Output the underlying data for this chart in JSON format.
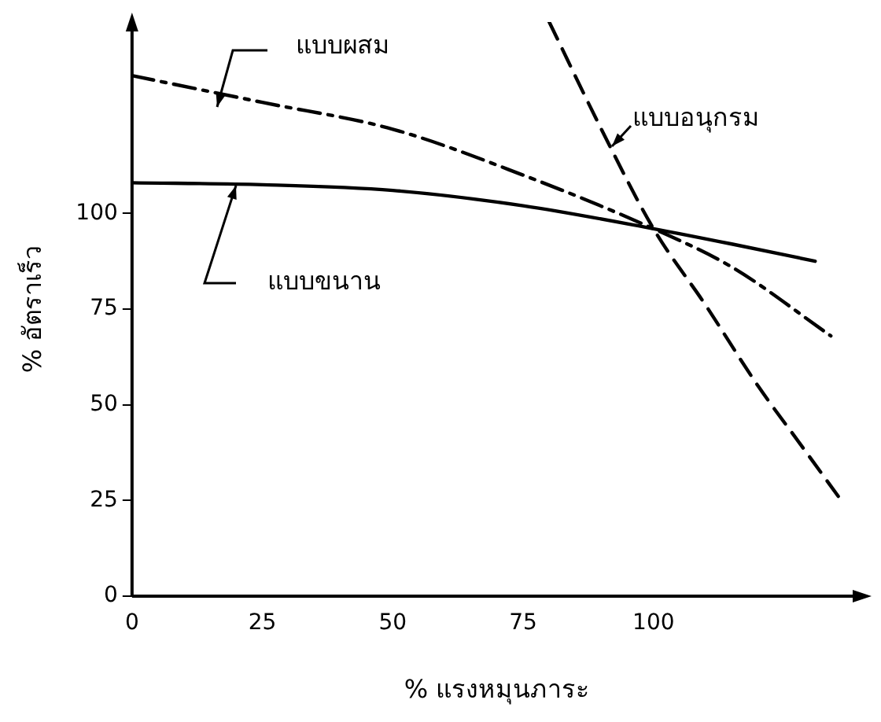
{
  "chart_data": {
    "type": "line",
    "xlabel": "% แรงหมุนภาระ",
    "ylabel": "% อัตราเร็ว",
    "xlim": [
      0,
      140
    ],
    "ylim": [
      0,
      150
    ],
    "xticks": [
      0,
      25,
      50,
      75,
      100
    ],
    "yticks": [
      0,
      25,
      50,
      75,
      100
    ],
    "grid": false,
    "legend": false,
    "marker": "none",
    "series": [
      {
        "name": "แบบขนาน",
        "color": "#000000",
        "line_style": "solid",
        "x": [
          0,
          25,
          50,
          75,
          100,
          115,
          131
        ],
        "values": [
          108,
          107.5,
          106,
          102,
          96,
          92,
          87.5
        ]
      },
      {
        "name": "แบบผสม",
        "color": "#000000",
        "line_style": "dashdot",
        "x": [
          0,
          25,
          50,
          75,
          100,
          115,
          134
        ],
        "values": [
          136,
          129,
          122,
          110,
          96,
          86,
          68
        ]
      },
      {
        "name": "แบบอนุกรม",
        "color": "#000000",
        "line_style": "dashed",
        "x": [
          80,
          90,
          100,
          110,
          120,
          128,
          136
        ],
        "values": [
          150,
          122,
          96,
          76,
          55,
          40,
          25
        ]
      }
    ]
  }
}
